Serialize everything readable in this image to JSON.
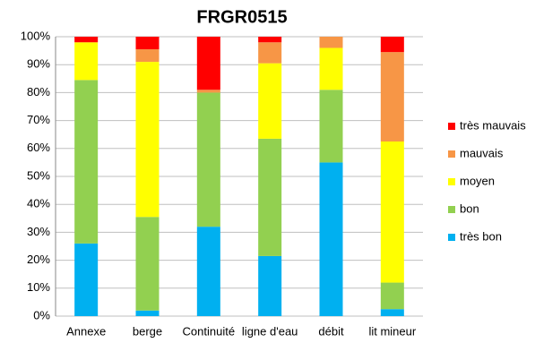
{
  "chart_data": {
    "type": "stacked_bar",
    "title": "FRGR0515",
    "categories": [
      "Annexe",
      "berge",
      "Continuité",
      "ligne d'eau",
      "débit",
      "lit mineur"
    ],
    "series": [
      {
        "name": "très bon",
        "color": "#00b0f0",
        "values": [
          26,
          2,
          32,
          21.5,
          55,
          2.5
        ]
      },
      {
        "name": "bon",
        "color": "#92d050",
        "values": [
          58.5,
          33.5,
          48,
          42,
          26,
          9.5
        ]
      },
      {
        "name": "moyen",
        "color": "#ffff00",
        "values": [
          13.5,
          55.5,
          0,
          27,
          15,
          50.5
        ]
      },
      {
        "name": "mauvais",
        "color": "#f79646",
        "values": [
          0,
          4.5,
          1,
          7.5,
          4,
          32
        ]
      },
      {
        "name": "très mauvais",
        "color": "#ff0000",
        "values": [
          2,
          4.5,
          19,
          2,
          0,
          5.5
        ]
      }
    ],
    "ylim": [
      0,
      100
    ],
    "yticks": [
      {
        "value": 0,
        "label": "0%"
      },
      {
        "value": 10,
        "label": "10%"
      },
      {
        "value": 20,
        "label": "20%"
      },
      {
        "value": 30,
        "label": "30%"
      },
      {
        "value": 40,
        "label": "40%"
      },
      {
        "value": 50,
        "label": "50%"
      },
      {
        "value": 60,
        "label": "60%"
      },
      {
        "value": 70,
        "label": "70%"
      },
      {
        "value": 80,
        "label": "80%"
      },
      {
        "value": 90,
        "label": "90%"
      },
      {
        "value": 100,
        "label": "100%"
      }
    ],
    "grid": true,
    "legend": "right"
  }
}
